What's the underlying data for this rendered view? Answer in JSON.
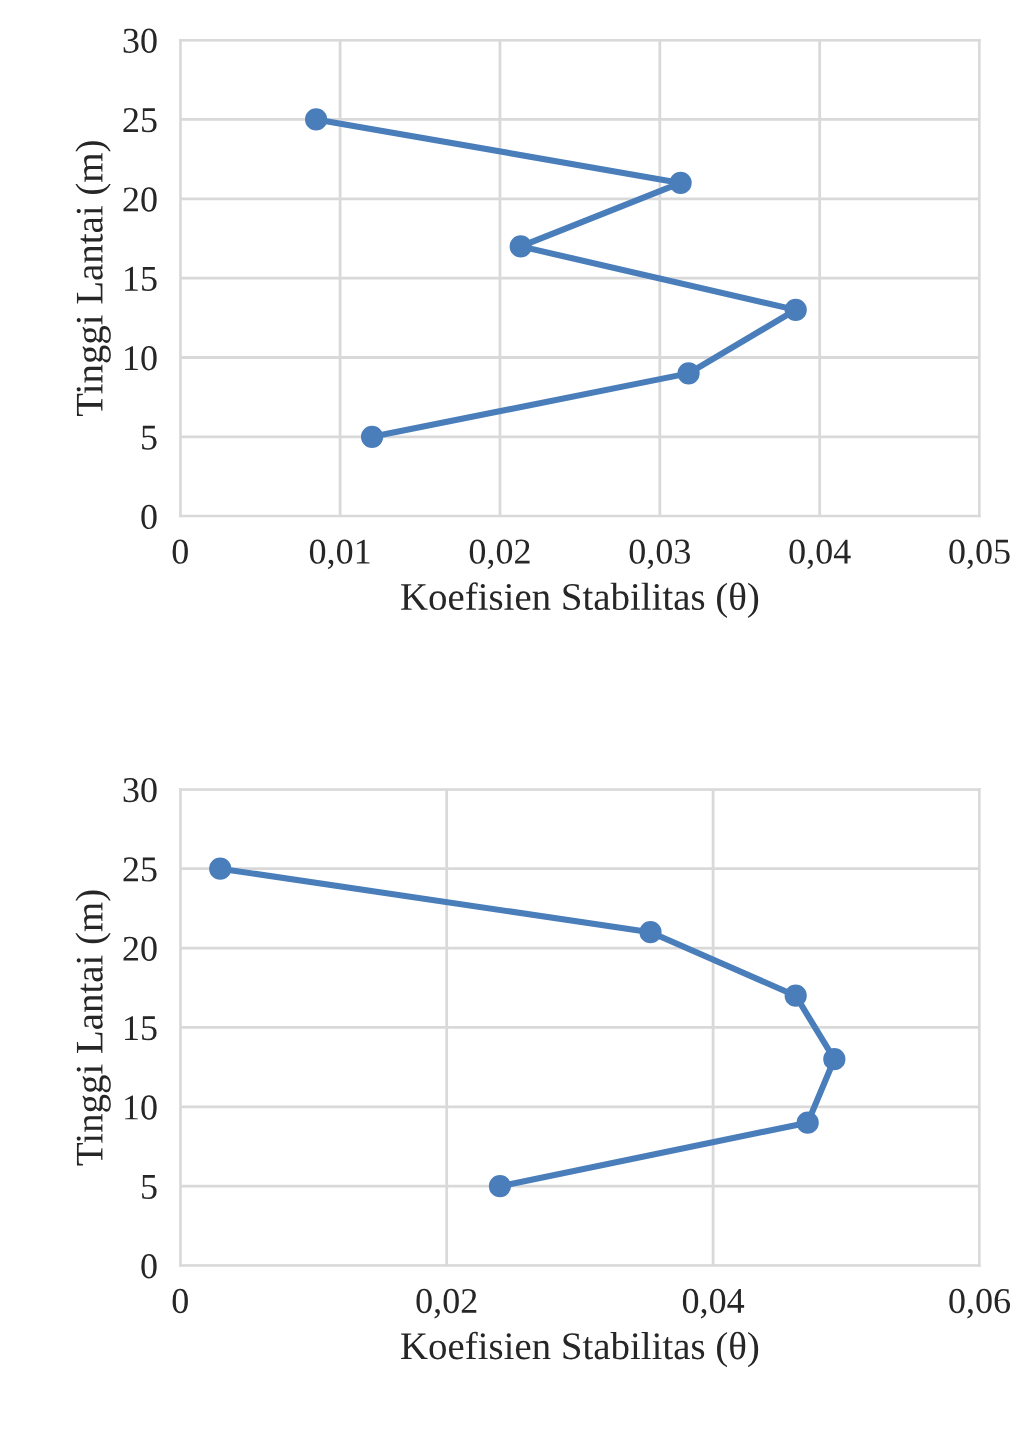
{
  "chart_data": [
    {
      "type": "line",
      "xlabel": "Koefisien Stabilitas (θ)",
      "ylabel": "Tinggi Lantai (m)",
      "x": [
        0.0085,
        0.0313,
        0.0213,
        0.0385,
        0.0318,
        0.012
      ],
      "series": [
        {
          "color": "#4a7ebb",
          "values": [
            25,
            21,
            17,
            13,
            9,
            5
          ]
        }
      ],
      "xlim": [
        0,
        0.05
      ],
      "xticks": [
        {
          "value": 0,
          "label": "0"
        },
        {
          "value": 0.01,
          "label": "0,01"
        },
        {
          "value": 0.02,
          "label": "0,02"
        },
        {
          "value": 0.03,
          "label": "0,03"
        },
        {
          "value": 0.04,
          "label": "0,04"
        },
        {
          "value": 0.05,
          "label": "0,05"
        }
      ],
      "ylim": [
        0,
        30
      ],
      "yticks": [
        0,
        5,
        10,
        15,
        20,
        25,
        30
      ],
      "grid": true,
      "marker": "circle",
      "line_style": "solid"
    },
    {
      "type": "line",
      "xlabel": "Koefisien Stabilitas (θ)",
      "ylabel": "Tinggi Lantai (m)",
      "x": [
        0.003,
        0.0353,
        0.0462,
        0.0491,
        0.0471,
        0.024
      ],
      "series": [
        {
          "color": "#4a7ebb",
          "values": [
            25,
            21,
            17,
            13,
            9,
            5
          ]
        }
      ],
      "xlim": [
        0,
        0.06
      ],
      "xticks": [
        {
          "value": 0,
          "label": "0"
        },
        {
          "value": 0.02,
          "label": "0,02"
        },
        {
          "value": 0.04,
          "label": "0,04"
        },
        {
          "value": 0.06,
          "label": "0,06"
        }
      ],
      "ylim": [
        0,
        30
      ],
      "yticks": [
        0,
        5,
        10,
        15,
        20,
        25,
        30
      ],
      "grid": true,
      "marker": "circle",
      "line_style": "solid"
    }
  ]
}
